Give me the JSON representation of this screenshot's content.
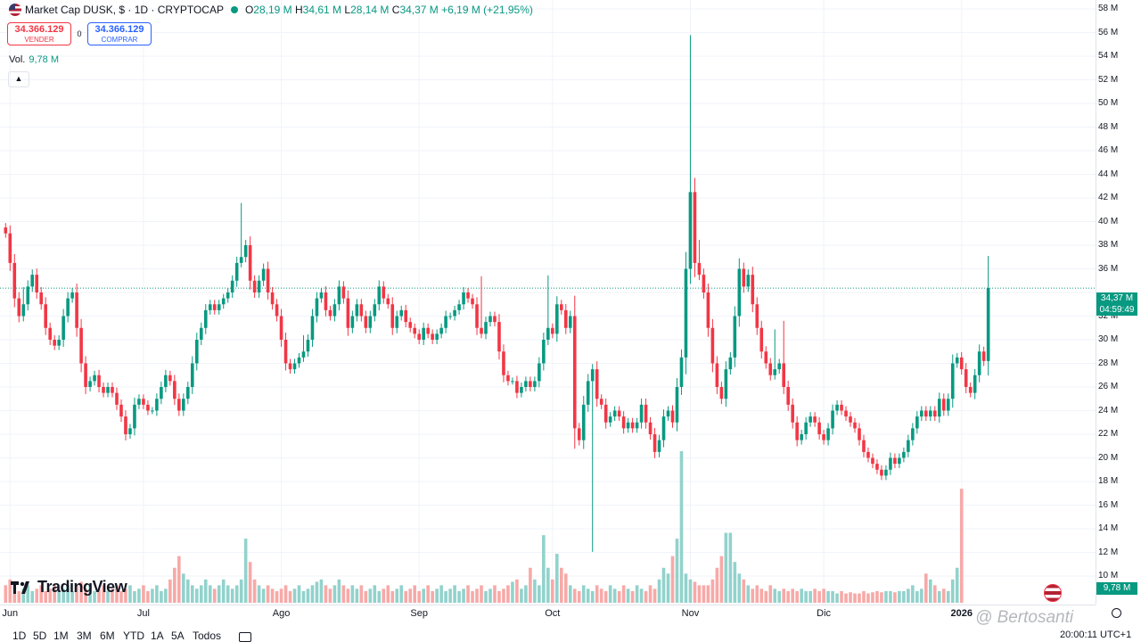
{
  "header": {
    "symbol_text": "Market Cap DUSK, $ · 1D · CRYPTOCAP",
    "ohlc": {
      "o_label": "O",
      "o": "28,19 M",
      "h_label": "H",
      "h": "34,61 M",
      "l_label": "L",
      "l": "28,14 M",
      "c_label": "C",
      "c": "34,37 M",
      "change": "+6,19 M (+21,95%)"
    }
  },
  "trade": {
    "sell_price": "34.366.129",
    "sell_label": "VENDER",
    "spread": "0",
    "buy_price": "34.366.129",
    "buy_label": "COMPRAR"
  },
  "volume_legend": {
    "label": "Vol.",
    "value": "9,78 M"
  },
  "logo_text": "TradingView",
  "price_tag": {
    "value": "34,37 M",
    "countdown": "04:59:49"
  },
  "volume_tag": "9,78 M",
  "price_axis_labels": [
    "58 M",
    "56 M",
    "54 M",
    "52 M",
    "50 M",
    "48 M",
    "46 M",
    "44 M",
    "42 M",
    "40 M",
    "38 M",
    "36 M",
    "32 M",
    "30 M",
    "28 M",
    "26 M",
    "24 M",
    "22 M",
    "20 M",
    "18 M",
    "16 M",
    "14 M",
    "12 M",
    "10 M"
  ],
  "time_axis_labels": [
    {
      "label": "Jun",
      "idx": 1
    },
    {
      "label": "Jul",
      "idx": 31
    },
    {
      "label": "Ago",
      "idx": 62
    },
    {
      "label": "Sep",
      "idx": 93
    },
    {
      "label": "Oct",
      "idx": 123
    },
    {
      "label": "Nov",
      "idx": 154
    },
    {
      "label": "Dic",
      "idx": 184
    },
    {
      "label": "2026",
      "idx": 215
    }
  ],
  "ranges": [
    "1D",
    "5D",
    "1M",
    "3M",
    "6M",
    "YTD",
    "1A",
    "5A",
    "Todos"
  ],
  "clock": "20:00:11 UTC+1",
  "watermark": "@ Bertosanti",
  "colors": {
    "up": "#089981",
    "down": "#f23645",
    "up_volume": "#92d2cc",
    "down_volume": "#f7a9a7"
  },
  "chart_data": {
    "type": "candlestick",
    "unit": "M",
    "ylim": [
      10,
      58
    ],
    "close": [
      39.0,
      36.5,
      33.5,
      32.0,
      33.0,
      34.5,
      35.5,
      34.0,
      33.0,
      31.0,
      30.0,
      29.5,
      30.0,
      32.0,
      33.5,
      34.0,
      31.0,
      28.0,
      26.0,
      26.5,
      27.0,
      26.0,
      25.5,
      26.0,
      25.5,
      24.5,
      23.5,
      22.0,
      22.5,
      24.5,
      25.0,
      24.5,
      24.0,
      24.0,
      25.0,
      26.0,
      27.0,
      26.5,
      25.0,
      24.0,
      25.0,
      26.0,
      28.0,
      30.0,
      31.0,
      32.5,
      33.0,
      32.5,
      33.0,
      33.5,
      34.0,
      35.0,
      36.5,
      37.0,
      38.0,
      35.0,
      34.0,
      35.0,
      36.0,
      34.0,
      33.0,
      32.0,
      30.0,
      28.0,
      27.5,
      28.0,
      28.5,
      29.0,
      30.0,
      32.0,
      33.5,
      34.0,
      32.5,
      32.0,
      33.0,
      34.5,
      33.5,
      31.0,
      32.0,
      33.0,
      32.0,
      31.0,
      32.0,
      33.0,
      34.5,
      33.5,
      33.0,
      31.0,
      32.0,
      32.5,
      31.5,
      31.0,
      30.5,
      30.0,
      31.0,
      30.5,
      30.0,
      30.5,
      31.0,
      32.0,
      32.0,
      32.5,
      33.0,
      34.0,
      33.5,
      33.0,
      31.0,
      30.5,
      31.5,
      32.0,
      31.5,
      29.0,
      27.0,
      26.5,
      26.5,
      25.5,
      26.0,
      26.5,
      26.0,
      26.5,
      28.0,
      30.0,
      31.0,
      30.5,
      33.0,
      32.5,
      31.0,
      32.0,
      22.5,
      21.5,
      24.5,
      26.5,
      27.5,
      25.0,
      24.5,
      23.0,
      23.5,
      24.0,
      23.5,
      22.5,
      23.0,
      22.5,
      23.0,
      24.5,
      23.0,
      22.0,
      20.5,
      21.5,
      23.5,
      24.0,
      23.0,
      26.0,
      28.5,
      36.0,
      42.5,
      36.5,
      35.5,
      34.0,
      31.0,
      28.0,
      26.0,
      25.0,
      27.5,
      28.5,
      32.0,
      36.0,
      34.5,
      35.5,
      33.0,
      31.0,
      29.0,
      28.0,
      27.0,
      27.5,
      28.0,
      26.0,
      24.5,
      23.0,
      21.5,
      22.0,
      23.0,
      23.5,
      23.0,
      22.0,
      21.5,
      22.5,
      24.0,
      24.5,
      24.0,
      23.5,
      23.0,
      22.5,
      21.5,
      20.5,
      20.0,
      19.5,
      19.0,
      18.5,
      19.0,
      20.0,
      19.5,
      20.0,
      20.5,
      21.5,
      22.5,
      23.5,
      24.0,
      23.5,
      24.0,
      23.5,
      25.0,
      24.0,
      25.0,
      28.0,
      28.5,
      27.5,
      26.0,
      25.5,
      27.0,
      29.0,
      28.2,
      34.37
    ],
    "volume_M": [
      1.5,
      2.0,
      1.5,
      1.0,
      1.2,
      1.5,
      1.0,
      1.2,
      1.5,
      1.0,
      1.2,
      1.5,
      1.0,
      1.2,
      1.5,
      1.0,
      1.5,
      1.8,
      1.2,
      1.5,
      1.0,
      1.2,
      1.5,
      1.0,
      1.2,
      1.5,
      1.0,
      1.2,
      1.5,
      1.0,
      1.2,
      1.5,
      1.0,
      1.2,
      1.5,
      1.0,
      1.2,
      2.0,
      3.0,
      4.0,
      2.5,
      2.0,
      1.5,
      1.2,
      1.5,
      2.0,
      1.5,
      1.2,
      1.5,
      2.0,
      1.5,
      1.2,
      1.5,
      2.0,
      5.5,
      3.5,
      2.0,
      1.5,
      1.2,
      1.5,
      1.2,
      1.0,
      1.2,
      1.5,
      1.0,
      1.2,
      1.5,
      1.0,
      1.2,
      1.5,
      1.8,
      2.0,
      1.5,
      1.2,
      1.5,
      2.0,
      1.5,
      1.2,
      1.5,
      1.2,
      1.5,
      1.0,
      1.2,
      1.5,
      1.0,
      1.2,
      1.5,
      1.0,
      1.2,
      1.5,
      1.0,
      1.2,
      1.5,
      1.0,
      1.2,
      1.5,
      1.0,
      1.2,
      1.5,
      1.0,
      1.2,
      1.5,
      1.0,
      1.2,
      1.5,
      1.0,
      1.2,
      1.5,
      1.0,
      1.2,
      1.5,
      1.0,
      1.2,
      1.5,
      1.8,
      2.0,
      1.2,
      1.5,
      3.0,
      2.0,
      1.5,
      5.8,
      3.0,
      2.0,
      4.2,
      3.0,
      2.5,
      1.5,
      1.2,
      1.0,
      1.5,
      1.2,
      1.0,
      1.5,
      1.2,
      1.0,
      1.5,
      1.2,
      1.0,
      1.5,
      1.2,
      1.0,
      1.5,
      1.2,
      1.0,
      1.5,
      1.2,
      2.0,
      3.0,
      2.5,
      4.0,
      5.5,
      13.0,
      2.5,
      2.0,
      1.8,
      1.5,
      1.5,
      1.5,
      2.0,
      3.0,
      4.0,
      6.0,
      6.0,
      3.5,
      2.5,
      2.0,
      1.5,
      1.2,
      1.5,
      1.2,
      1.0,
      1.5,
      1.2,
      1.0,
      1.2,
      1.0,
      1.2,
      1.0,
      1.2,
      1.0,
      1.0,
      1.2,
      1.0,
      1.2,
      1.0,
      1.0,
      0.8,
      1.0,
      0.8,
      0.9,
      0.8,
      0.8,
      1.0,
      0.8,
      0.9,
      1.0,
      0.9,
      1.0,
      1.0,
      0.9,
      1.0,
      1.0,
      1.2,
      1.5,
      1.0,
      1.2,
      2.5,
      2.0,
      1.5,
      1.0,
      1.2,
      1.0,
      2.0,
      3.0,
      9.78
    ],
    "spikes": {
      "4": 1.0,
      "53": 4.2,
      "67": 1.0,
      "107": 4.0,
      "122": 4.0,
      "132": -14.0,
      "154": 12.0,
      "156": 1.5,
      "173": 3.0,
      "175": 3.0,
      "221": 1.5
    }
  }
}
